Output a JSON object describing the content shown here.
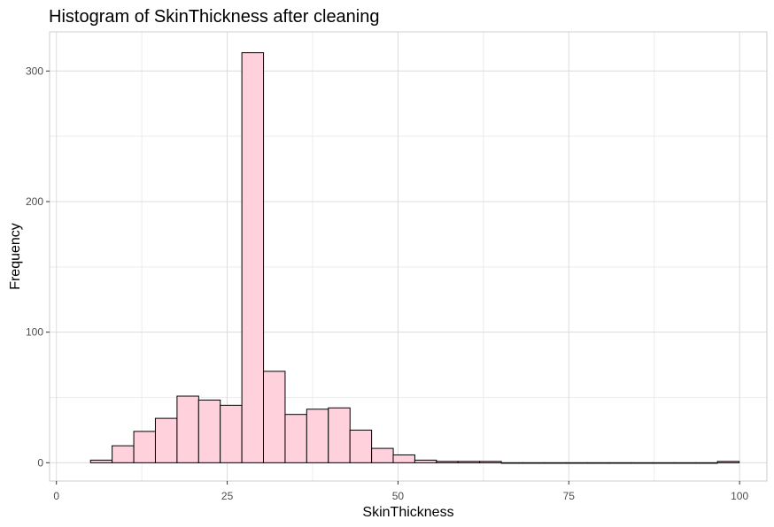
{
  "chart_data": {
    "type": "bar",
    "title": "Histogram of SkinThickness after cleaning",
    "xlabel": "SkinThickness",
    "ylabel": "Frequency",
    "xlim": [
      -1,
      104
    ],
    "ylim": [
      -14,
      330
    ],
    "x_ticks": [
      0,
      25,
      50,
      75,
      100
    ],
    "y_ticks": [
      0,
      100,
      200,
      300
    ],
    "bin_width": 3.17,
    "bar_fill": "#ffd1dc",
    "bar_stroke": "#000000",
    "grid": true,
    "legend": "none",
    "bins": [
      {
        "x": 6.58,
        "count": 2
      },
      {
        "x": 9.74,
        "count": 13
      },
      {
        "x": 12.91,
        "count": 24
      },
      {
        "x": 16.07,
        "count": 34
      },
      {
        "x": 19.24,
        "count": 51
      },
      {
        "x": 22.4,
        "count": 48
      },
      {
        "x": 25.56,
        "count": 44
      },
      {
        "x": 28.73,
        "count": 314
      },
      {
        "x": 31.89,
        "count": 70
      },
      {
        "x": 35.06,
        "count": 37
      },
      {
        "x": 38.22,
        "count": 41
      },
      {
        "x": 41.39,
        "count": 42
      },
      {
        "x": 44.55,
        "count": 25
      },
      {
        "x": 47.72,
        "count": 11
      },
      {
        "x": 50.88,
        "count": 6
      },
      {
        "x": 54.04,
        "count": 2
      },
      {
        "x": 57.21,
        "count": 1
      },
      {
        "x": 60.37,
        "count": 1
      },
      {
        "x": 63.54,
        "count": 1
      },
      {
        "x": 66.7,
        "count": 0
      },
      {
        "x": 69.87,
        "count": 0
      },
      {
        "x": 73.03,
        "count": 0
      },
      {
        "x": 76.2,
        "count": 0
      },
      {
        "x": 79.36,
        "count": 0
      },
      {
        "x": 82.52,
        "count": 0
      },
      {
        "x": 85.69,
        "count": 0
      },
      {
        "x": 88.85,
        "count": 0
      },
      {
        "x": 92.02,
        "count": 0
      },
      {
        "x": 95.18,
        "count": 0
      },
      {
        "x": 98.35,
        "count": 1
      }
    ]
  }
}
